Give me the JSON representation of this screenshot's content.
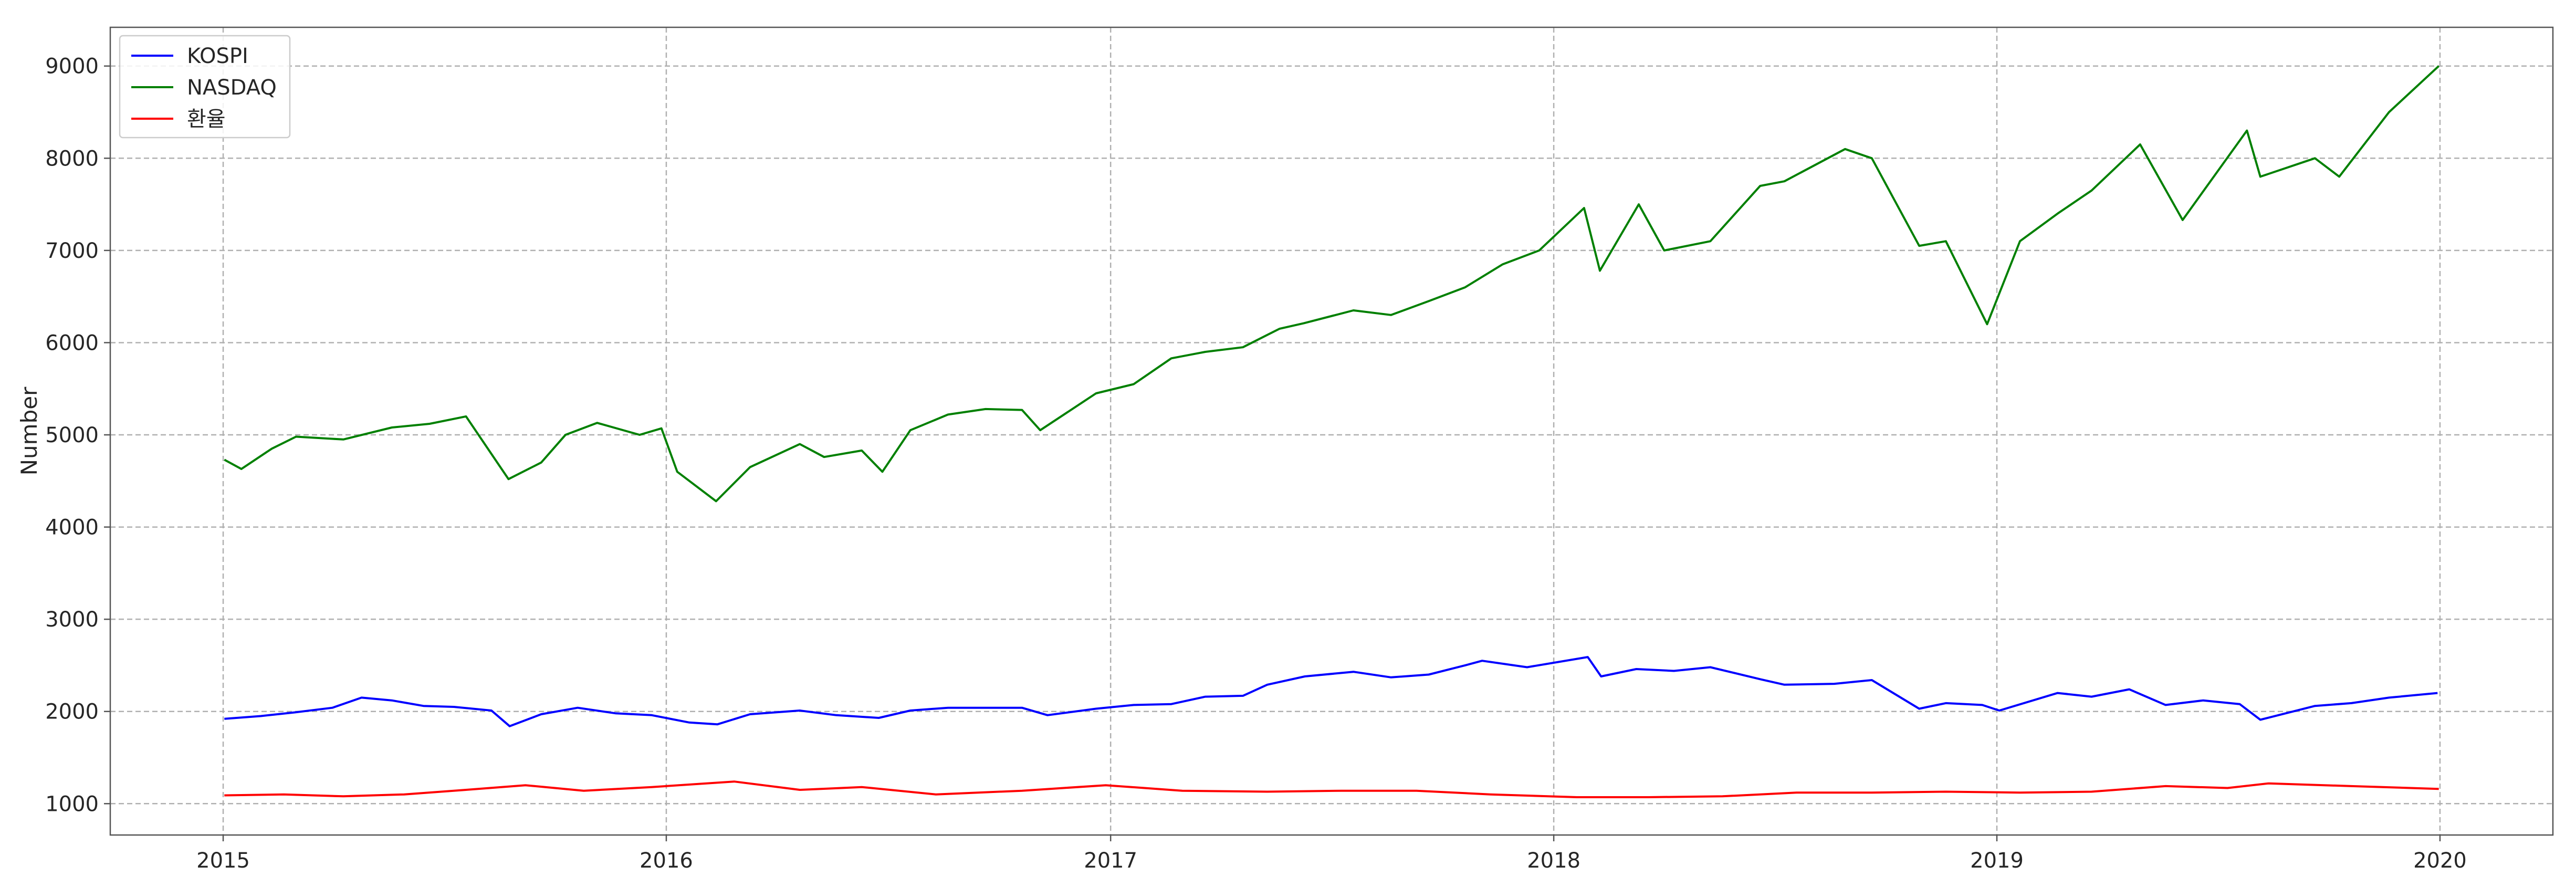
{
  "chart_data": {
    "type": "line",
    "title": "",
    "xlabel": "",
    "ylabel": "Number",
    "xlim": [
      "2014-09-30",
      "2020-04-03"
    ],
    "ylim": [
      660,
      9420
    ],
    "x_ticks": [
      "2015",
      "2016",
      "2017",
      "2018",
      "2019",
      "2020"
    ],
    "y_ticks": [
      1000,
      2000,
      3000,
      4000,
      5000,
      6000,
      7000,
      8000,
      9000
    ],
    "grid": true,
    "legend_position": "top-left",
    "series": [
      {
        "name": "KOSPI",
        "color": "#0000ff",
        "x": [
          "2015-01-02",
          "2015-02-01",
          "2015-03-01",
          "2015-04-01",
          "2015-04-25",
          "2015-05-20",
          "2015-06-15",
          "2015-07-10",
          "2015-08-10",
          "2015-08-25",
          "2015-09-20",
          "2015-10-20",
          "2015-11-20",
          "2015-12-20",
          "2016-01-20",
          "2016-02-12",
          "2016-03-10",
          "2016-04-20",
          "2016-05-20",
          "2016-06-24",
          "2016-07-20",
          "2016-08-20",
          "2016-09-20",
          "2016-10-20",
          "2016-11-10",
          "2016-12-20",
          "2017-01-20",
          "2017-02-20",
          "2017-03-20",
          "2017-04-20",
          "2017-05-10",
          "2017-06-10",
          "2017-07-20",
          "2017-08-20",
          "2017-09-20",
          "2017-10-20",
          "2017-11-03",
          "2017-12-10",
          "2018-01-29",
          "2018-02-09",
          "2018-03-10",
          "2018-04-10",
          "2018-05-10",
          "2018-06-20",
          "2018-07-10",
          "2018-08-20",
          "2018-09-20",
          "2018-10-29",
          "2018-11-20",
          "2018-12-20",
          "2019-01-03",
          "2019-02-20",
          "2019-03-20",
          "2019-04-20",
          "2019-05-20",
          "2019-06-20",
          "2019-07-20",
          "2019-08-06",
          "2019-09-20",
          "2019-10-20",
          "2019-11-20",
          "2019-12-30"
        ],
        "values": [
          1920,
          1950,
          1990,
          2040,
          2150,
          2120,
          2060,
          2050,
          2010,
          1840,
          1970,
          2040,
          1980,
          1960,
          1880,
          1860,
          1970,
          2010,
          1960,
          1930,
          2010,
          2040,
          2040,
          2040,
          1960,
          2030,
          2070,
          2080,
          2160,
          2170,
          2290,
          2380,
          2430,
          2370,
          2400,
          2500,
          2550,
          2480,
          2590,
          2380,
          2460,
          2440,
          2480,
          2350,
          2290,
          2300,
          2340,
          2030,
          2090,
          2070,
          2010,
          2200,
          2160,
          2240,
          2070,
          2120,
          2080,
          1910,
          2060,
          2090,
          2150,
          2200
        ]
      },
      {
        "name": "NASDAQ",
        "color": "#008000",
        "x": [
          "2015-01-02",
          "2015-01-16",
          "2015-02-10",
          "2015-03-02",
          "2015-04-10",
          "2015-05-20",
          "2015-06-20",
          "2015-07-20",
          "2015-08-24",
          "2015-09-20",
          "2015-10-10",
          "2015-11-05",
          "2015-12-10",
          "2015-12-28",
          "2016-01-10",
          "2016-02-11",
          "2016-03-10",
          "2016-04-20",
          "2016-05-10",
          "2016-06-10",
          "2016-06-27",
          "2016-07-20",
          "2016-08-20",
          "2016-09-20",
          "2016-10-20",
          "2016-11-04",
          "2016-12-20",
          "2017-01-20",
          "2017-02-20",
          "2017-03-20",
          "2017-04-20",
          "2017-05-20",
          "2017-06-09",
          "2017-07-20",
          "2017-08-20",
          "2017-09-20",
          "2017-10-20",
          "2017-11-20",
          "2017-12-20",
          "2018-01-26",
          "2018-02-08",
          "2018-03-12",
          "2018-04-02",
          "2018-05-10",
          "2018-06-20",
          "2018-07-10",
          "2018-08-29",
          "2018-09-20",
          "2018-10-29",
          "2018-11-20",
          "2018-12-24",
          "2019-01-20",
          "2019-02-20",
          "2019-03-20",
          "2019-04-29",
          "2019-06-03",
          "2019-07-26",
          "2019-08-06",
          "2019-09-20",
          "2019-10-10",
          "2019-11-20",
          "2019-12-31"
        ],
        "values": [
          4730,
          4630,
          4850,
          4980,
          4950,
          5080,
          5120,
          5200,
          4520,
          4700,
          5000,
          5130,
          5000,
          5070,
          4600,
          4280,
          4650,
          4900,
          4760,
          4830,
          4600,
          5050,
          5220,
          5280,
          5270,
          5050,
          5450,
          5550,
          5830,
          5900,
          5950,
          6150,
          6210,
          6350,
          6300,
          6450,
          6600,
          6850,
          7000,
          7460,
          6780,
          7500,
          7000,
          7100,
          7700,
          7750,
          8100,
          8000,
          7050,
          7100,
          6200,
          7100,
          7400,
          7650,
          8150,
          7330,
          8300,
          7800,
          8000,
          7800,
          8500,
          9000
        ]
      },
      {
        "name": "환율",
        "color": "#ff0000",
        "x": [
          "2015-01-02",
          "2015-02-20",
          "2015-04-10",
          "2015-05-30",
          "2015-07-20",
          "2015-09-07",
          "2015-10-25",
          "2015-12-20",
          "2016-02-26",
          "2016-04-20",
          "2016-06-10",
          "2016-08-10",
          "2016-10-20",
          "2016-12-28",
          "2017-03-01",
          "2017-05-10",
          "2017-07-10",
          "2017-09-10",
          "2017-11-10",
          "2018-01-20",
          "2018-03-20",
          "2018-05-20",
          "2018-07-20",
          "2018-09-20",
          "2018-11-20",
          "2019-01-20",
          "2019-03-20",
          "2019-05-20",
          "2019-07-10",
          "2019-08-13",
          "2019-10-20",
          "2019-12-31"
        ],
        "values": [
          1090,
          1100,
          1080,
          1100,
          1150,
          1200,
          1140,
          1180,
          1240,
          1150,
          1180,
          1100,
          1140,
          1200,
          1140,
          1130,
          1140,
          1140,
          1100,
          1070,
          1070,
          1080,
          1120,
          1120,
          1130,
          1120,
          1130,
          1190,
          1170,
          1220,
          1190,
          1160
        ]
      }
    ]
  }
}
